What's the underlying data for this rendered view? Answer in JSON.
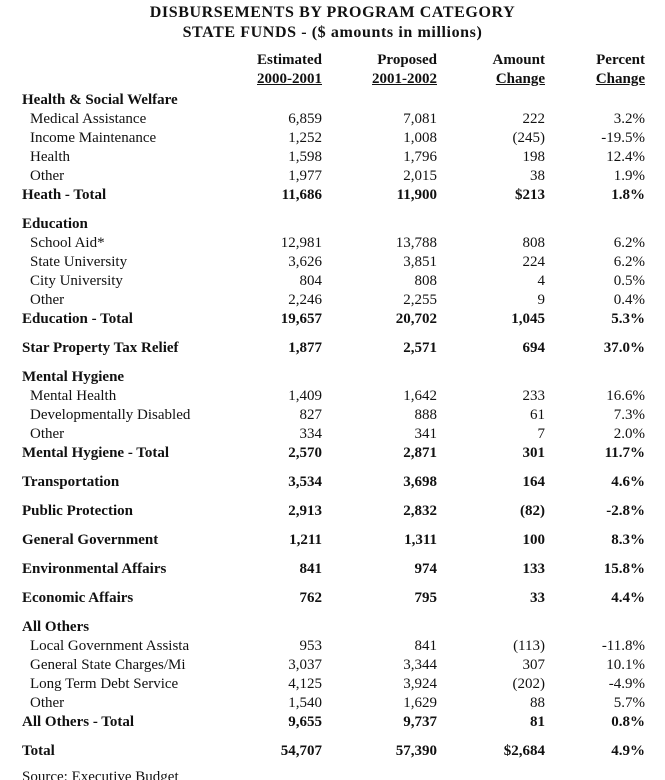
{
  "title": {
    "line1": "DISBURSEMENTS BY PROGRAM CATEGORY",
    "line2": "STATE FUNDS - ($ amounts in millions)"
  },
  "columns": [
    {
      "line1": "Estimated",
      "line2": "2000-2001"
    },
    {
      "line1": "Proposed",
      "line2": "2001-2002"
    },
    {
      "line1": "Amount",
      "line2": "Change"
    },
    {
      "line1": "Percent",
      "line2": "Change"
    }
  ],
  "rows": [
    {
      "type": "section",
      "label": "Health & Social Welfare"
    },
    {
      "type": "item",
      "label": "Medical Assistance",
      "est": "6,859",
      "prop": "7,081",
      "amount": "222",
      "percent": "3.2%"
    },
    {
      "type": "item",
      "label": "Income Maintenance",
      "est": "1,252",
      "prop": "1,008",
      "amount": "(245)",
      "percent": "-19.5%"
    },
    {
      "type": "item",
      "label": "Health",
      "est": "1,598",
      "prop": "1,796",
      "amount": "198",
      "percent": "12.4%"
    },
    {
      "type": "item",
      "label": "Other",
      "est": "1,977",
      "prop": "2,015",
      "amount": "38",
      "percent": "1.9%"
    },
    {
      "type": "total",
      "label": "Heath - Total",
      "est": "11,686",
      "prop": "11,900",
      "amount": "$213",
      "percent": "1.8%"
    },
    {
      "type": "spacer"
    },
    {
      "type": "section",
      "label": "Education"
    },
    {
      "type": "item",
      "label": "School Aid*",
      "est": "12,981",
      "prop": "13,788",
      "amount": "808",
      "percent": "6.2%"
    },
    {
      "type": "item",
      "label": "State University",
      "est": "3,626",
      "prop": "3,851",
      "amount": "224",
      "percent": "6.2%"
    },
    {
      "type": "item",
      "label": "City University",
      "est": "804",
      "prop": "808",
      "amount": "4",
      "percent": "0.5%"
    },
    {
      "type": "item",
      "label": "Other",
      "est": "2,246",
      "prop": "2,255",
      "amount": "9",
      "percent": "0.4%"
    },
    {
      "type": "total",
      "label": "Education - Total",
      "est": "19,657",
      "prop": "20,702",
      "amount": "1,045",
      "percent": "5.3%"
    },
    {
      "type": "spacer"
    },
    {
      "type": "standalone",
      "label": "Star Property Tax Relief",
      "est": "1,877",
      "prop": "2,571",
      "amount": "694",
      "percent": "37.0%"
    },
    {
      "type": "spacer"
    },
    {
      "type": "section",
      "label": "Mental Hygiene"
    },
    {
      "type": "item",
      "label": "Mental Health",
      "est": "1,409",
      "prop": "1,642",
      "amount": "233",
      "percent": "16.6%"
    },
    {
      "type": "item",
      "label": "Developmentally Disabled",
      "est": "827",
      "prop": "888",
      "amount": "61",
      "percent": "7.3%"
    },
    {
      "type": "item",
      "label": "Other",
      "est": "334",
      "prop": "341",
      "amount": "7",
      "percent": "2.0%"
    },
    {
      "type": "total",
      "label": "Mental Hygiene - Total",
      "est": "2,570",
      "prop": "2,871",
      "amount": "301",
      "percent": "11.7%"
    },
    {
      "type": "spacer"
    },
    {
      "type": "standalone",
      "label": "Transportation",
      "est": "3,534",
      "prop": "3,698",
      "amount": "164",
      "percent": "4.6%"
    },
    {
      "type": "spacer"
    },
    {
      "type": "standalone",
      "label": "Public Protection",
      "est": "2,913",
      "prop": "2,832",
      "amount": "(82)",
      "percent": "-2.8%"
    },
    {
      "type": "spacer"
    },
    {
      "type": "standalone",
      "label": "General Government",
      "est": "1,211",
      "prop": "1,311",
      "amount": "100",
      "percent": "8.3%"
    },
    {
      "type": "spacer"
    },
    {
      "type": "standalone",
      "label": "Environmental Affairs",
      "est": "841",
      "prop": "974",
      "amount": "133",
      "percent": "15.8%"
    },
    {
      "type": "spacer"
    },
    {
      "type": "standalone",
      "label": "Economic Affairs",
      "est": "762",
      "prop": "795",
      "amount": "33",
      "percent": "4.4%"
    },
    {
      "type": "spacer"
    },
    {
      "type": "section",
      "label": "All Others"
    },
    {
      "type": "item",
      "label": "Local Government Assista",
      "est": "953",
      "prop": "841",
      "amount": "(113)",
      "percent": "-11.8%"
    },
    {
      "type": "item",
      "label": "General State Charges/Mi",
      "est": "3,037",
      "prop": "3,344",
      "amount": "307",
      "percent": "10.1%"
    },
    {
      "type": "item",
      "label": "Long Term Debt Service",
      "est": "4,125",
      "prop": "3,924",
      "amount": "(202)",
      "percent": "-4.9%"
    },
    {
      "type": "item",
      "label": "Other",
      "est": "1,540",
      "prop": "1,629",
      "amount": "88",
      "percent": "5.7%"
    },
    {
      "type": "total",
      "label": "All Others - Total",
      "est": "9,655",
      "prop": "9,737",
      "amount": "81",
      "percent": "0.8%"
    },
    {
      "type": "spacer"
    },
    {
      "type": "standalone",
      "label": "Total",
      "est": "54,707",
      "prop": "57,390",
      "amount": "$2,684",
      "percent": "4.9%"
    }
  ],
  "source": "Source:   Executive Budget"
}
